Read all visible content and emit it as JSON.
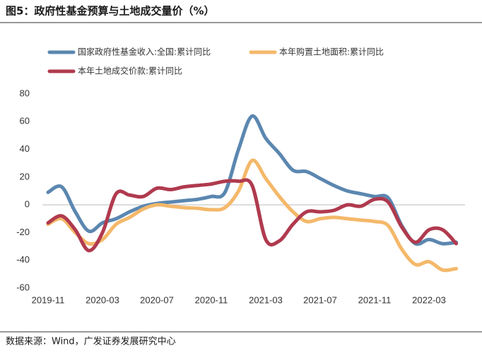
{
  "chart_data": {
    "type": "line",
    "title": "图5：政府性基金预算与土地成交量价（%）",
    "source": "数据来源：Wind，广发证券发展研究中心",
    "categories": [
      "2019-11",
      null,
      null,
      null,
      "2020-03",
      null,
      null,
      null,
      "2020-07",
      null,
      null,
      null,
      "2020-11",
      null,
      null,
      null,
      "2021-03",
      null,
      null,
      null,
      "2021-07",
      null,
      null,
      null,
      "2021-11",
      null,
      null,
      null,
      "2022-03",
      null,
      null
    ],
    "series": [
      {
        "name": "国家政府性基金收入:全国:累计同比",
        "color": "#5b87b0",
        "values": [
          9,
          13,
          -5,
          -19,
          -13,
          -10,
          -5,
          -1,
          1,
          2,
          3,
          4,
          6,
          9,
          40,
          64,
          48,
          37,
          25,
          24,
          19,
          14,
          10,
          8,
          6,
          5,
          -15,
          -28,
          -25,
          -28,
          -27
        ]
      },
      {
        "name": "本年购置土地面积:累计同比",
        "color": "#f4b86a",
        "values": [
          -14,
          -10,
          -20,
          -28,
          -25,
          -14,
          -9,
          -3,
          0,
          -1,
          -2,
          -2.5,
          -3.5,
          -2,
          10,
          32,
          19,
          6,
          -5,
          -12,
          -10,
          -9,
          -10,
          -11,
          -12,
          -15,
          -32,
          -43,
          -41,
          -47,
          -46
        ]
      },
      {
        "name": "本年土地成交价款:累计同比",
        "color": "#b03a4e",
        "values": [
          -13,
          -8,
          -18,
          -33,
          -20,
          8,
          7,
          6,
          12,
          11,
          13,
          14,
          15,
          17,
          17,
          14,
          -25,
          -26,
          -14,
          -5,
          -5,
          -4,
          0,
          -1,
          4,
          2,
          -16,
          -27,
          -18,
          -18,
          -28
        ]
      }
    ],
    "ylim": [
      -60,
      80
    ],
    "yticks": [
      -60,
      -40,
      -20,
      0,
      20,
      40,
      60,
      80
    ]
  }
}
